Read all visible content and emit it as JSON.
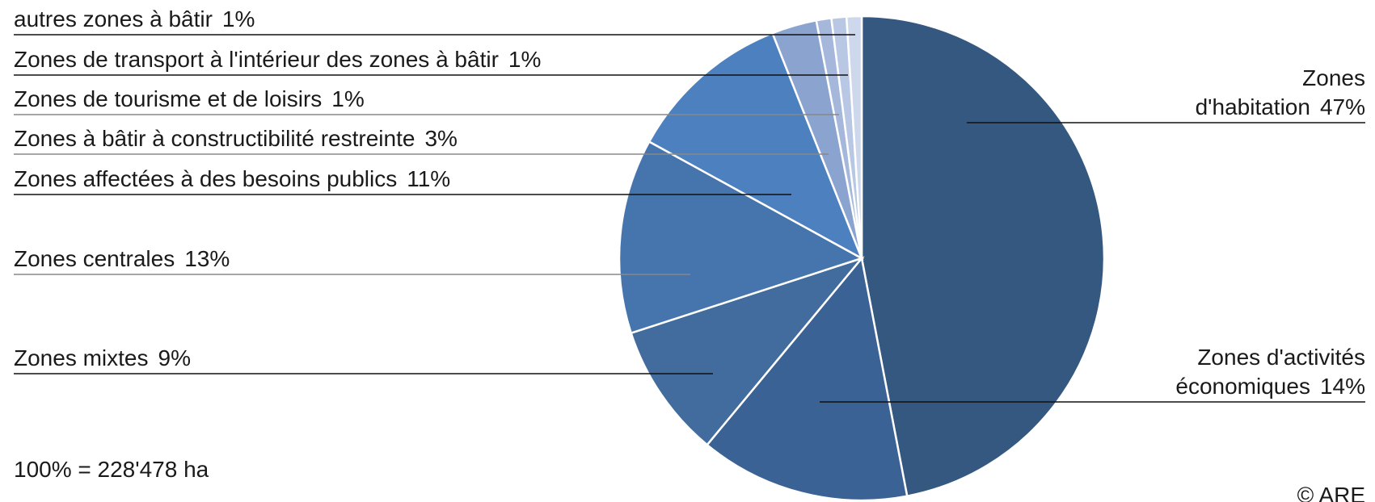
{
  "chart_data": {
    "type": "pie",
    "categories": [
      "Zones\nd'habitation",
      "Zones d'activités\néconomiques",
      "Zones mixtes",
      "Zones centrales",
      "Zones affectées à des besoins publics",
      "Zones à bâtir à constructibilité restreinte",
      "Zones de tourisme et de loisirs",
      "Zones de transport à l'intérieur des zones à bâtir",
      "autres zones à bâtir"
    ],
    "values": [
      47,
      14,
      9,
      13,
      11,
      3,
      1,
      1,
      1
    ],
    "value_labels": [
      "47%",
      "14%",
      "9%",
      "13%",
      "11%",
      "3%",
      "1%",
      "1%",
      "1%"
    ],
    "colors": [
      "#34587f",
      "#3b6294",
      "#416c9d",
      "#4675ad",
      "#4d80bf",
      "#8aa4cf",
      "#a5b8dc",
      "#b8c8e4",
      "#cdd8ec"
    ],
    "footnote": "100% = 228'478 ha",
    "copyright": "© ARE"
  }
}
